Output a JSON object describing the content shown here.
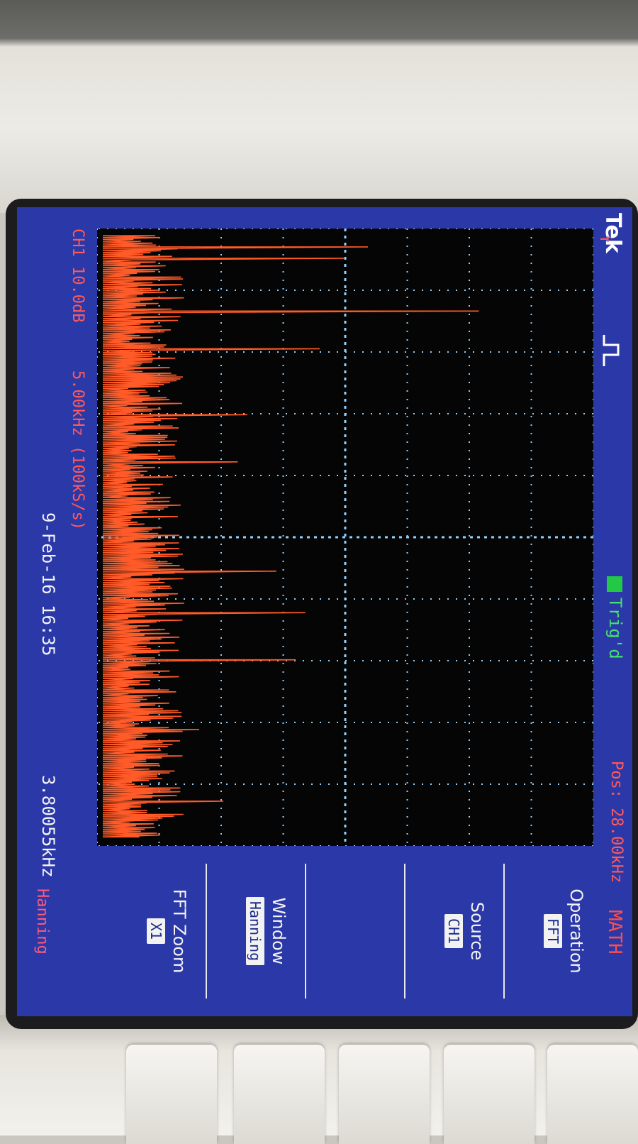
{
  "scope": {
    "brand": "Tek",
    "trigger_status": "Trig'd",
    "position": "Pos: 28.00kHz",
    "mode": "MATH",
    "trigger_marker": "T",
    "center_marker": "↑"
  },
  "menu": {
    "operation_label": "Operation",
    "operation_value": "FFT",
    "source_label": "Source",
    "source_value": "CH1",
    "window_label": "Window",
    "window_value": "Hanning",
    "zoom_label": "FFT Zoom",
    "zoom_value": "X1"
  },
  "status": {
    "channel_scale": "CH1 10.0dB",
    "fft_scale": "5.00kHz (100kS/s)",
    "date_time": "9-Feb-16 16:35",
    "frequency": "3.80055kHz",
    "window_name": "Hanning"
  },
  "colors": {
    "screen_background": "#2b38a8",
    "trace": "#ff5a28",
    "grid": "#8fd0ff",
    "trig_status": "#48e070",
    "alert_text": "#ff5a5a"
  }
}
